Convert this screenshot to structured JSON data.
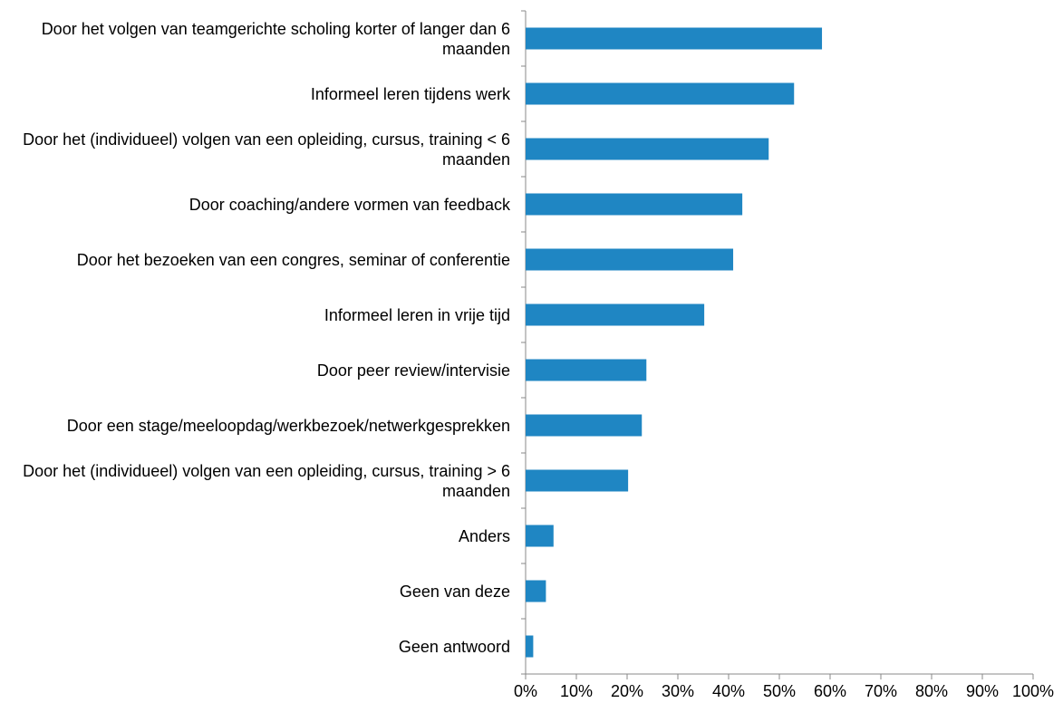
{
  "chart_data": {
    "type": "bar",
    "orientation": "horizontal",
    "categories": [
      "Door het volgen van teamgerichte scholing korter of langer dan 6 maanden",
      "Informeel leren tijdens werk",
      "Door het (individueel) volgen van een opleiding, cursus, training < 6 maanden",
      "Door coaching/andere vormen van feedback",
      "Door het bezoeken van een congres, seminar of conferentie",
      "Informeel leren in vrije tijd",
      "Door peer review/intervisie",
      "Door een stage/meeloopdag/werkbezoek/netwerkgesprekken",
      "Door het (individueel) volgen van een opleiding, cursus, training > 6 maanden",
      "Anders",
      "Geen van deze",
      "Geen antwoord"
    ],
    "values": [
      58.4,
      52.9,
      47.9,
      42.7,
      40.9,
      35.2,
      23.8,
      22.9,
      20.2,
      5.5,
      4,
      1.5
    ],
    "color": "#1f86c3",
    "xlim": [
      0,
      100
    ],
    "xticks": [
      {
        "value": 0,
        "label": "0%"
      },
      {
        "value": 10,
        "label": "10%"
      },
      {
        "value": 20,
        "label": "20%"
      },
      {
        "value": 30,
        "label": "30%"
      },
      {
        "value": 40,
        "label": "40%"
      },
      {
        "value": 50,
        "label": "50%"
      },
      {
        "value": 60,
        "label": "60%"
      },
      {
        "value": 70,
        "label": "70%"
      },
      {
        "value": 80,
        "label": "80%"
      },
      {
        "value": 90,
        "label": "90%"
      },
      {
        "value": 100,
        "label": "100%"
      }
    ],
    "grid": false
  }
}
